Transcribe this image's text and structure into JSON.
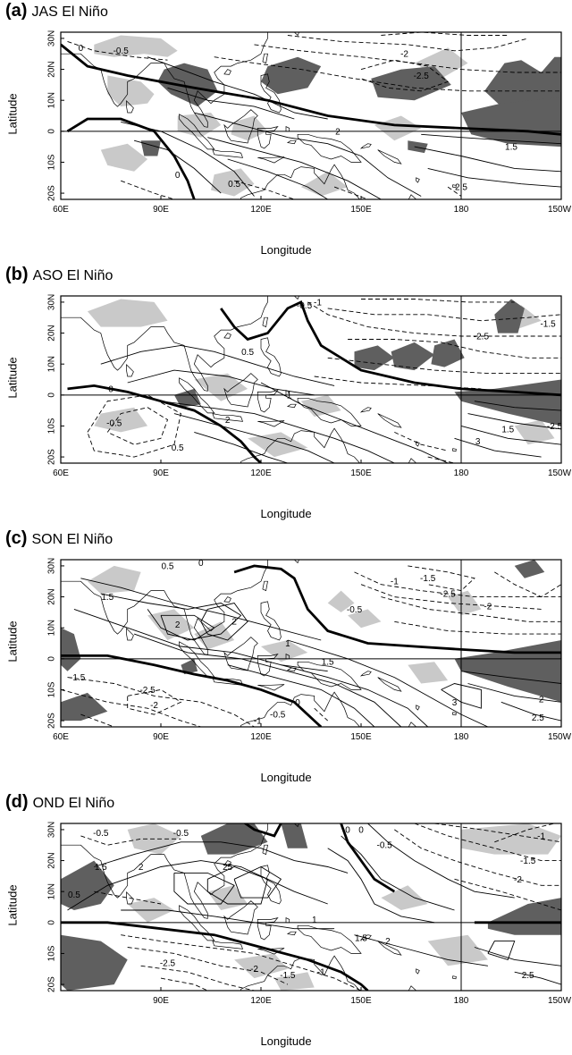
{
  "figure": {
    "x_axis_label": "Longitude",
    "y_axis_label": "Latitude",
    "longitude_ticks": [
      "60E",
      "90E",
      "120E",
      "150E",
      "180",
      "150W"
    ],
    "latitude_ticks": [
      "30N",
      "20N",
      "10N",
      "0",
      "10S",
      "20S"
    ],
    "shading_colors": {
      "light": "#c9c9c9",
      "dark": "#5f5f5f"
    },
    "line_color": "#000000"
  },
  "panels": [
    {
      "id": "a",
      "letter": "(a)",
      "season": "JAS El Niño",
      "contour_labels": [
        "0",
        "-0.5",
        "-2",
        "-2.5",
        "2",
        "1.5",
        "2.5",
        "0.5",
        "0"
      ]
    },
    {
      "id": "b",
      "letter": "(b)",
      "season": "ASO El Niño",
      "contour_labels": [
        "-0.5",
        "-1",
        "0.5",
        "-2.5",
        "-1.5",
        "0",
        "-1",
        "-0.5",
        "0.5",
        "2",
        "1.5",
        "-2.5",
        "3"
      ]
    },
    {
      "id": "c",
      "letter": "(c)",
      "season": "SON El Niño",
      "contour_labels": [
        "0.5",
        "0",
        "1.5",
        "2",
        "2",
        "-0.5",
        "-1",
        "-1.5",
        "-2.5",
        "-2",
        "1",
        "1.5",
        "-1.5",
        "-2.5",
        "-2",
        "3",
        "2.5",
        "2",
        "-0.5",
        "-1",
        "0"
      ]
    },
    {
      "id": "d",
      "letter": "(d)",
      "season": "OND El Niño",
      "contour_labels": [
        "-0.5",
        "-0.5",
        "1.5",
        "2",
        "0.5",
        "25",
        "0",
        "0",
        "-0.5",
        "-1",
        "-1.5",
        "-2",
        "1",
        "1.5",
        "2",
        "-2.5",
        "-2",
        "-1.5",
        "-1",
        "2.5"
      ]
    }
  ]
}
